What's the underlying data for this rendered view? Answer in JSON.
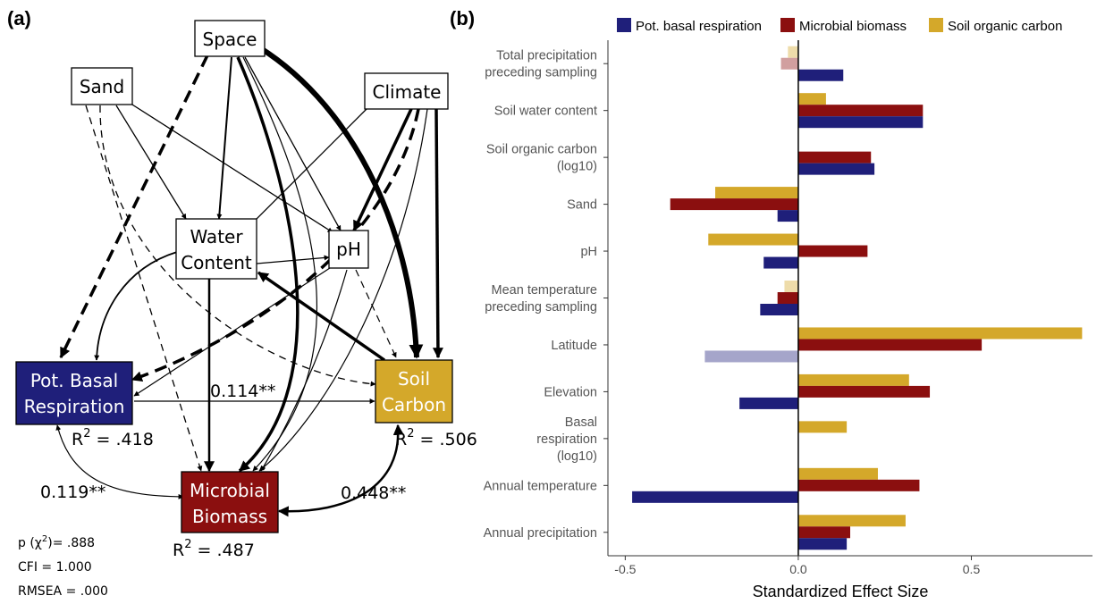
{
  "panel_a": {
    "label": "(a)",
    "nodes": {
      "space": "Space",
      "sand": "Sand",
      "climate": "Climate",
      "water_line1": "Water",
      "water_line2": "Content",
      "ph": "pH",
      "pbr_line1": "Pot. Basal",
      "pbr_line2": "Respiration",
      "soil_line1": "Soil",
      "soil_line2": "Carbon",
      "mb_line1": "Microbial",
      "mb_line2": "Biomass"
    },
    "colors": {
      "pot_basal_respiration": "#1f1f7a",
      "soil_carbon": "#d4a82a",
      "microbial_biomass": "#8b0f0f"
    },
    "path_labels": {
      "pbr_to_soil": "0.114**",
      "pbr_mb": "0.119**",
      "soil_mb": "0.448**"
    },
    "r2": {
      "prefix": "R",
      "sup": "2",
      "pbr": " = .418",
      "soil": " = .506",
      "mb": " = .487"
    },
    "fit": {
      "p_prefix": "p (χ",
      "p_sup": "2",
      "p_suffix": ")= .888",
      "cfi": "CFI = 1.000",
      "rmsea": "RMSEA = .000"
    }
  },
  "chart_data": {
    "type": "bar",
    "orientation": "horizontal",
    "panel_label": "(b)",
    "title": "",
    "xlabel": "Standardized Effect Size",
    "ylabel": "",
    "xlim": [
      -0.55,
      0.85
    ],
    "xticks": [
      -0.5,
      0.0,
      0.5
    ],
    "xtick_labels": [
      "-0.5",
      "0.0",
      "0.5"
    ],
    "grid": false,
    "legend_position": "top",
    "categories": [
      [
        "Total precipitation",
        "preceding sampling"
      ],
      [
        "Soil water content"
      ],
      [
        "Soil organic carbon",
        "(log10)"
      ],
      [
        "Sand"
      ],
      [
        "pH"
      ],
      [
        "Mean temperature",
        "preceding sampling"
      ],
      [
        "Latitude"
      ],
      [
        "Elevation"
      ],
      [
        "Basal",
        "respiration",
        "(log10)"
      ],
      [
        "Annual temperature"
      ],
      [
        "Annual precipitation"
      ]
    ],
    "series": [
      {
        "name": "Pot. basal respiration",
        "color": "#1f1f7a",
        "values": [
          0.13,
          0.36,
          0.22,
          -0.06,
          -0.1,
          -0.11,
          -0.27,
          -0.17,
          null,
          -0.48,
          0.14
        ],
        "faded": [
          false,
          false,
          false,
          false,
          false,
          false,
          true,
          false,
          false,
          false,
          false
        ]
      },
      {
        "name": "Microbial biomass",
        "color": "#8b0f0f",
        "values": [
          -0.05,
          0.36,
          0.21,
          -0.37,
          0.2,
          -0.06,
          0.53,
          0.38,
          null,
          0.35,
          0.15
        ],
        "faded": [
          true,
          false,
          false,
          false,
          false,
          false,
          false,
          false,
          false,
          false,
          false
        ]
      },
      {
        "name": "Soil organic carbon",
        "color": "#d4a82a",
        "values": [
          -0.03,
          0.08,
          null,
          -0.24,
          -0.26,
          -0.04,
          0.82,
          0.32,
          0.14,
          0.23,
          0.31
        ],
        "faded": [
          true,
          false,
          false,
          false,
          false,
          true,
          false,
          false,
          false,
          false,
          false
        ]
      }
    ]
  }
}
